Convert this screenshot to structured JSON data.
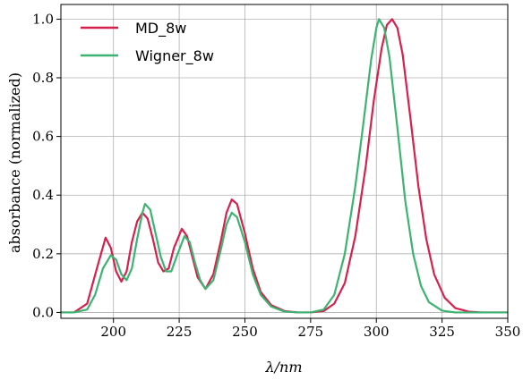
{
  "chart_data": {
    "type": "line",
    "title": "",
    "xlabel": "λ/nm",
    "ylabel": "absorbance (normalized)",
    "xlim": [
      180,
      350
    ],
    "ylim": [
      -0.02,
      1.05
    ],
    "xticks": [
      200,
      225,
      250,
      275,
      300,
      325,
      350
    ],
    "yticks": [
      0.0,
      0.2,
      0.4,
      0.6,
      0.8,
      1.0
    ],
    "xtick_labels": [
      "200",
      "225",
      "250",
      "275",
      "300",
      "325",
      "350"
    ],
    "ytick_labels": [
      "0.0",
      "0.2",
      "0.4",
      "0.6",
      "0.8",
      "1.0"
    ],
    "grid": true,
    "legend_position": "top-left",
    "series": [
      {
        "name": "MD_8w",
        "color": "#d6204e",
        "points": [
          [
            180,
            0.0
          ],
          [
            185,
            0.0
          ],
          [
            190,
            0.03
          ],
          [
            194,
            0.16
          ],
          [
            197,
            0.255
          ],
          [
            199,
            0.22
          ],
          [
            201,
            0.14
          ],
          [
            203,
            0.105
          ],
          [
            205,
            0.14
          ],
          [
            207,
            0.24
          ],
          [
            209,
            0.31
          ],
          [
            211,
            0.34
          ],
          [
            213,
            0.32
          ],
          [
            215,
            0.25
          ],
          [
            217,
            0.17
          ],
          [
            219,
            0.14
          ],
          [
            221,
            0.15
          ],
          [
            223,
            0.22
          ],
          [
            226,
            0.285
          ],
          [
            228,
            0.26
          ],
          [
            230,
            0.19
          ],
          [
            232,
            0.12
          ],
          [
            235,
            0.08
          ],
          [
            238,
            0.13
          ],
          [
            241,
            0.25
          ],
          [
            243,
            0.34
          ],
          [
            245,
            0.385
          ],
          [
            247,
            0.37
          ],
          [
            250,
            0.27
          ],
          [
            253,
            0.15
          ],
          [
            256,
            0.07
          ],
          [
            260,
            0.025
          ],
          [
            265,
            0.005
          ],
          [
            270,
            0.0
          ],
          [
            275,
            0.0
          ],
          [
            280,
            0.005
          ],
          [
            284,
            0.03
          ],
          [
            288,
            0.1
          ],
          [
            292,
            0.26
          ],
          [
            296,
            0.5
          ],
          [
            299,
            0.72
          ],
          [
            302,
            0.9
          ],
          [
            304,
            0.98
          ],
          [
            306,
            1.0
          ],
          [
            308,
            0.97
          ],
          [
            310,
            0.88
          ],
          [
            313,
            0.66
          ],
          [
            316,
            0.43
          ],
          [
            319,
            0.25
          ],
          [
            322,
            0.13
          ],
          [
            326,
            0.05
          ],
          [
            330,
            0.015
          ],
          [
            335,
            0.003
          ],
          [
            340,
            0.0
          ],
          [
            350,
            0.0
          ]
        ]
      },
      {
        "name": "Wigner_8w",
        "color": "#3cb371",
        "points": [
          [
            180,
            0.0
          ],
          [
            185,
            0.0
          ],
          [
            190,
            0.01
          ],
          [
            193,
            0.06
          ],
          [
            196,
            0.15
          ],
          [
            199,
            0.195
          ],
          [
            201,
            0.18
          ],
          [
            203,
            0.13
          ],
          [
            205,
            0.11
          ],
          [
            207,
            0.15
          ],
          [
            209,
            0.25
          ],
          [
            211,
            0.34
          ],
          [
            212,
            0.37
          ],
          [
            214,
            0.35
          ],
          [
            216,
            0.27
          ],
          [
            218,
            0.19
          ],
          [
            220,
            0.14
          ],
          [
            222,
            0.14
          ],
          [
            224,
            0.19
          ],
          [
            227,
            0.26
          ],
          [
            229,
            0.24
          ],
          [
            231,
            0.17
          ],
          [
            233,
            0.11
          ],
          [
            235,
            0.08
          ],
          [
            238,
            0.11
          ],
          [
            241,
            0.22
          ],
          [
            243,
            0.3
          ],
          [
            245,
            0.34
          ],
          [
            247,
            0.325
          ],
          [
            250,
            0.24
          ],
          [
            253,
            0.13
          ],
          [
            256,
            0.06
          ],
          [
            260,
            0.02
          ],
          [
            265,
            0.003
          ],
          [
            270,
            0.0
          ],
          [
            275,
            0.0
          ],
          [
            280,
            0.01
          ],
          [
            284,
            0.06
          ],
          [
            288,
            0.2
          ],
          [
            292,
            0.43
          ],
          [
            295,
            0.64
          ],
          [
            298,
            0.86
          ],
          [
            300,
            0.97
          ],
          [
            301,
            1.0
          ],
          [
            303,
            0.97
          ],
          [
            305,
            0.87
          ],
          [
            308,
            0.63
          ],
          [
            311,
            0.38
          ],
          [
            314,
            0.2
          ],
          [
            317,
            0.09
          ],
          [
            320,
            0.035
          ],
          [
            325,
            0.006
          ],
          [
            330,
            0.0
          ],
          [
            340,
            0.0
          ],
          [
            350,
            0.0
          ]
        ]
      }
    ]
  }
}
